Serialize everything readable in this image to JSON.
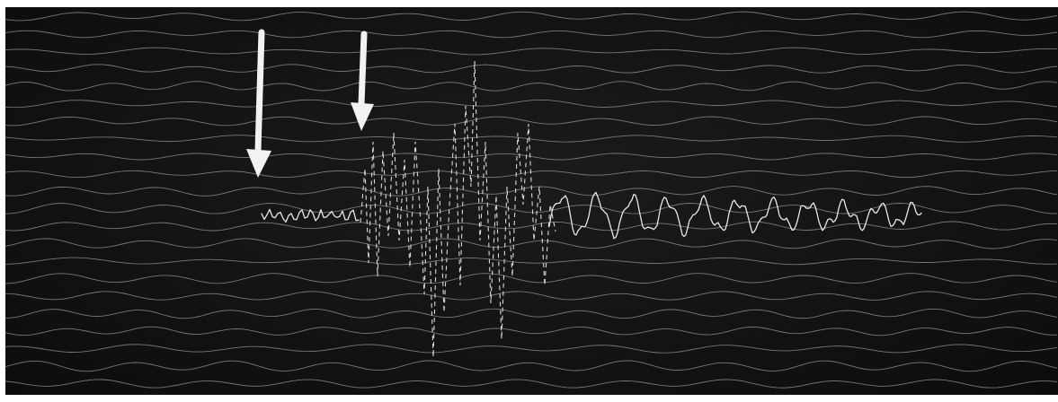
{
  "image": {
    "subject": "seismogram",
    "background_color": "#111111",
    "trace_color": "#9a9a9a",
    "signal_color": "#e8e8e8",
    "arrow_color": "#f2f2f2",
    "arrows": [
      {
        "name": "first-arrival-arrow-icon"
      },
      {
        "name": "second-arrival-arrow-icon"
      }
    ]
  }
}
